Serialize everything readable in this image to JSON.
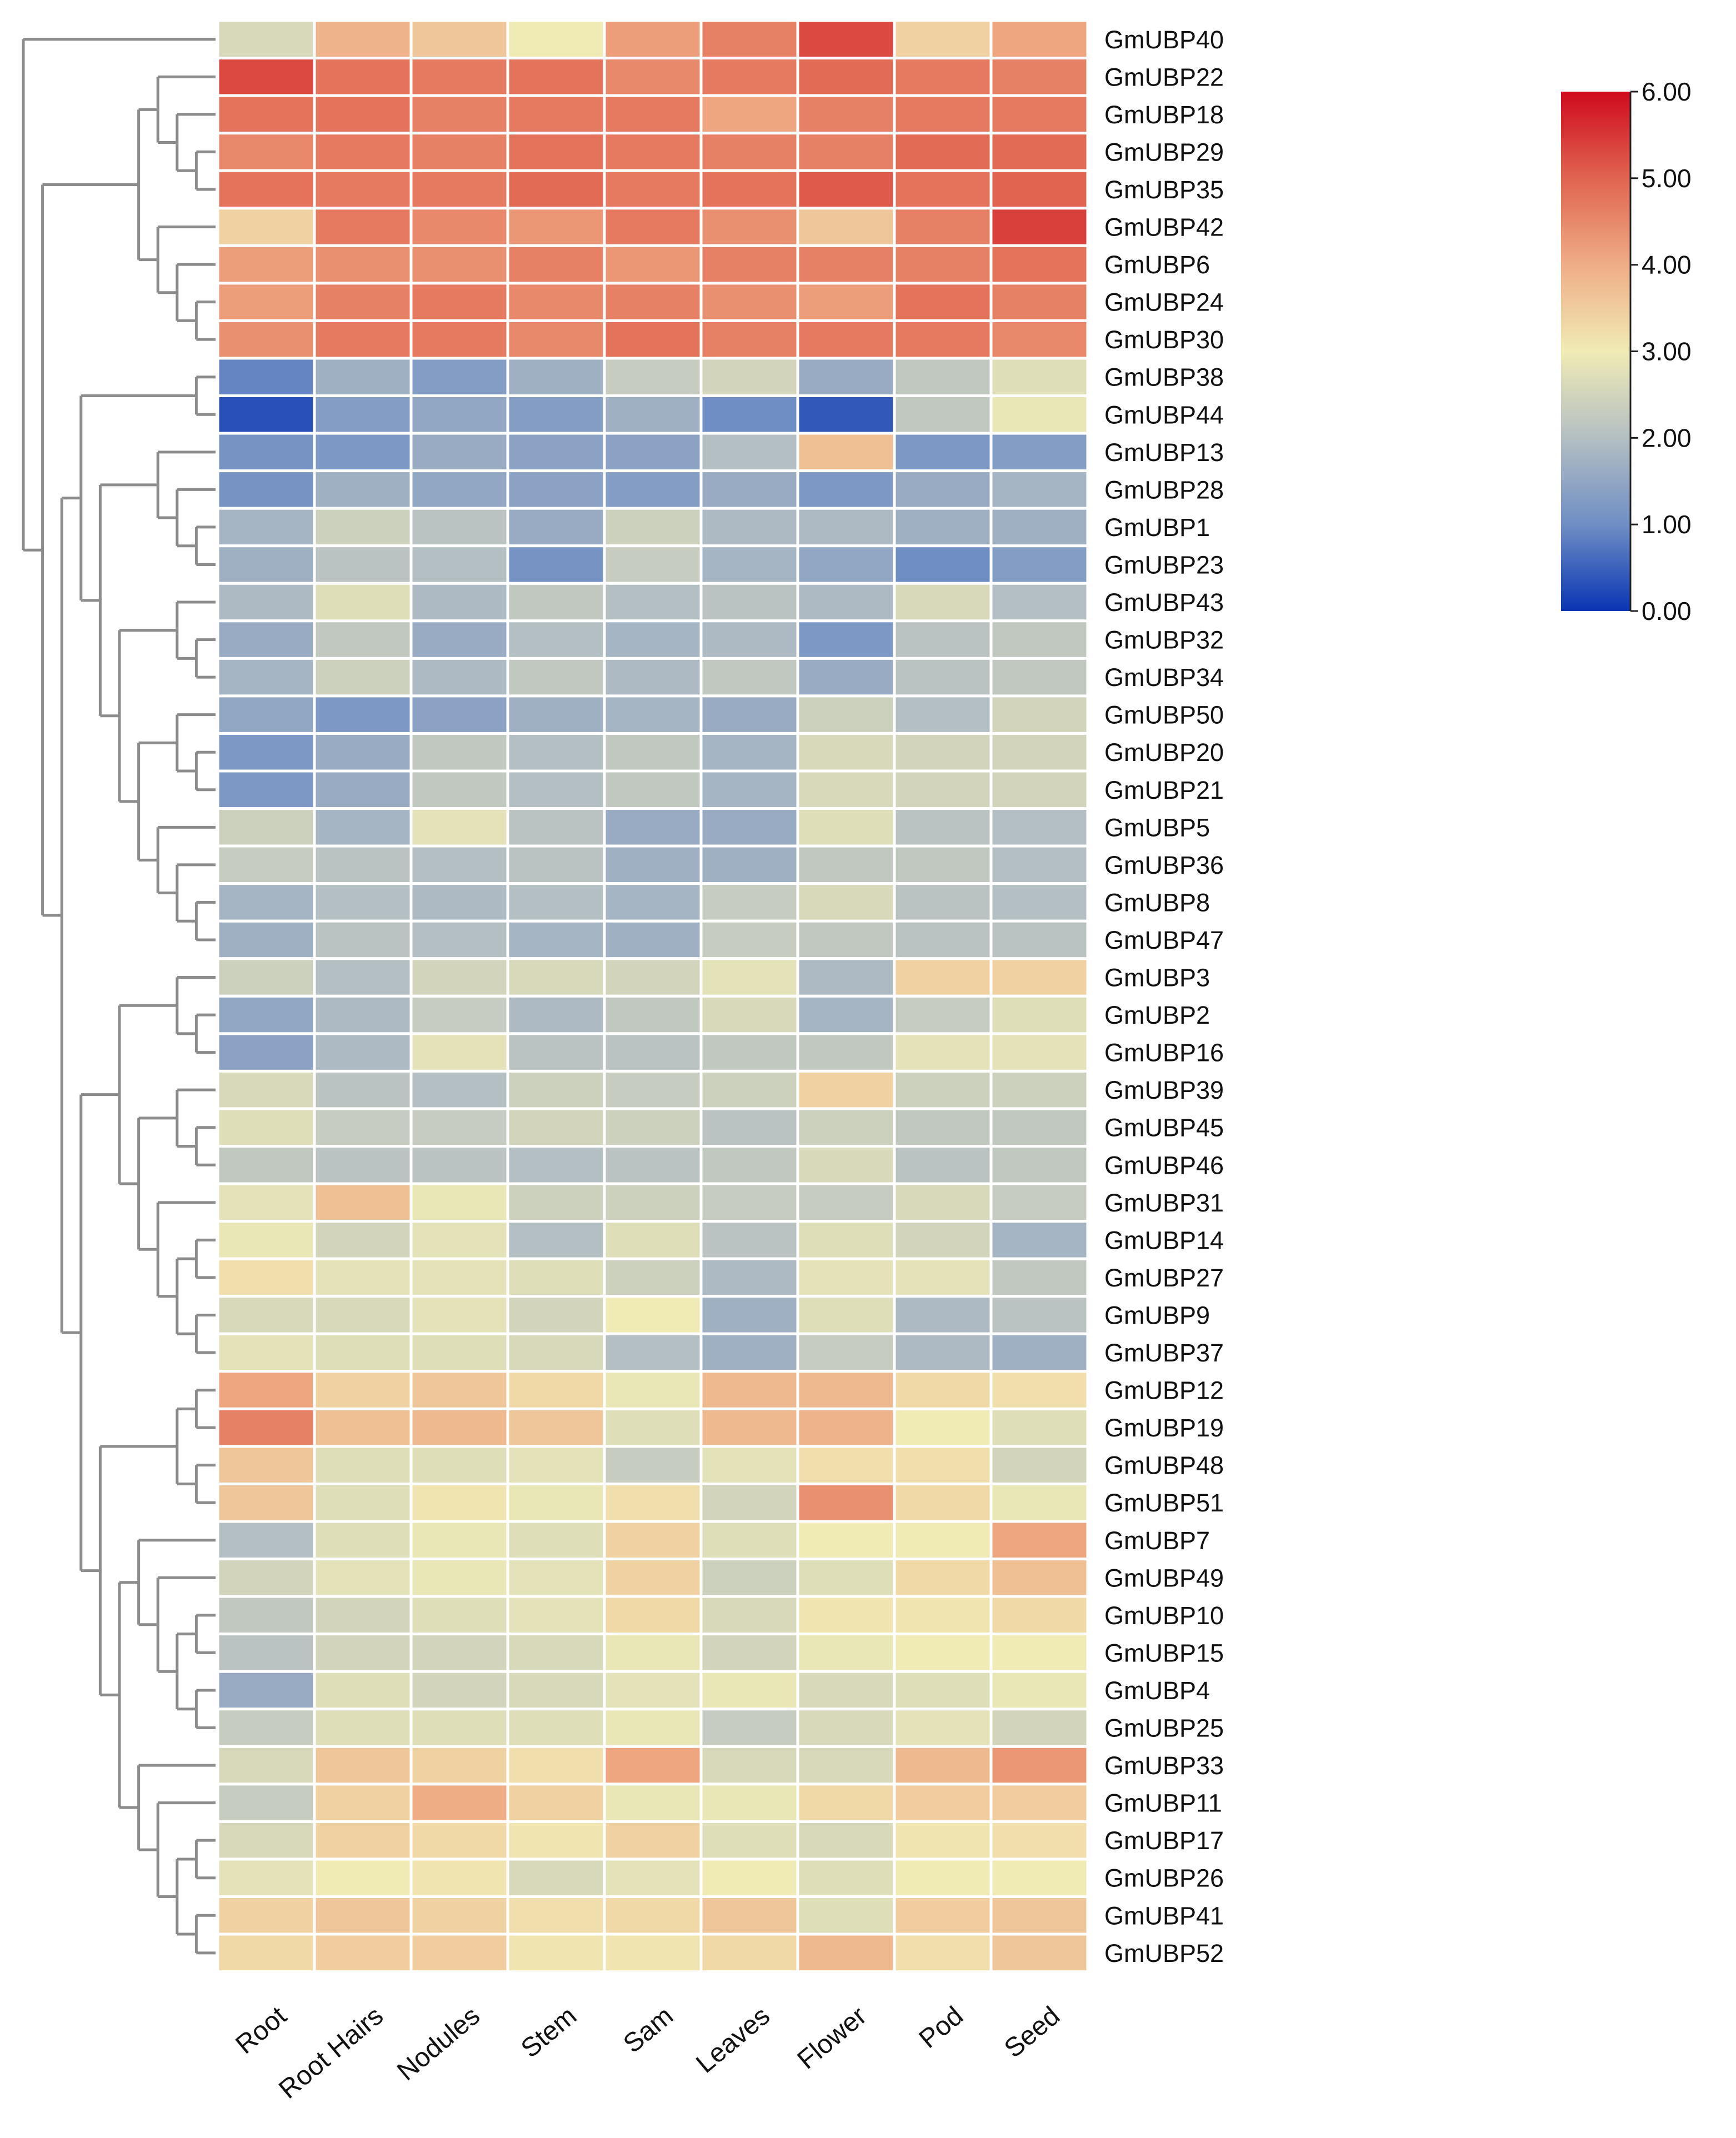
{
  "chart_data": {
    "type": "heatmap",
    "title": "",
    "columns": [
      "Root",
      "Root Hairs",
      "Nodules",
      "Stem",
      "Sam",
      "Leaves",
      "Flower",
      "Pod",
      "Seed"
    ],
    "rows": [
      "GmUBP40",
      "GmUBP22",
      "GmUBP18",
      "GmUBP29",
      "GmUBP35",
      "GmUBP42",
      "GmUBP6",
      "GmUBP24",
      "GmUBP30",
      "GmUBP38",
      "GmUBP44",
      "GmUBP13",
      "GmUBP28",
      "GmUBP1",
      "GmUBP23",
      "GmUBP43",
      "GmUBP32",
      "GmUBP34",
      "GmUBP50",
      "GmUBP20",
      "GmUBP21",
      "GmUBP5",
      "GmUBP36",
      "GmUBP8",
      "GmUBP47",
      "GmUBP3",
      "GmUBP2",
      "GmUBP16",
      "GmUBP39",
      "GmUBP45",
      "GmUBP46",
      "GmUBP31",
      "GmUBP14",
      "GmUBP27",
      "GmUBP9",
      "GmUBP37",
      "GmUBP12",
      "GmUBP19",
      "GmUBP48",
      "GmUBP51",
      "GmUBP7",
      "GmUBP49",
      "GmUBP10",
      "GmUBP15",
      "GmUBP4",
      "GmUBP25",
      "GmUBP33",
      "GmUBP11",
      "GmUBP17",
      "GmUBP26",
      "GmUBP41",
      "GmUBP52"
    ],
    "values": [
      [
        2.6,
        3.9,
        3.6,
        3.0,
        4.2,
        4.6,
        5.3,
        3.4,
        4.1
      ],
      [
        5.3,
        4.8,
        4.7,
        4.8,
        4.5,
        4.7,
        4.9,
        4.7,
        4.6
      ],
      [
        4.8,
        4.8,
        4.6,
        4.7,
        4.7,
        4.1,
        4.6,
        4.7,
        4.7
      ],
      [
        4.5,
        4.7,
        4.6,
        4.8,
        4.7,
        4.6,
        4.6,
        4.9,
        4.9
      ],
      [
        4.8,
        4.7,
        4.7,
        4.9,
        4.7,
        4.8,
        5.1,
        4.8,
        5.0
      ],
      [
        3.4,
        4.7,
        4.5,
        4.3,
        4.7,
        4.4,
        3.6,
        4.6,
        5.4
      ],
      [
        4.2,
        4.4,
        4.4,
        4.6,
        4.3,
        4.6,
        4.6,
        4.6,
        4.8
      ],
      [
        4.2,
        4.6,
        4.7,
        4.5,
        4.6,
        4.4,
        4.2,
        4.8,
        4.6
      ],
      [
        4.4,
        4.7,
        4.7,
        4.5,
        4.8,
        4.6,
        4.7,
        4.7,
        4.5
      ],
      [
        0.9,
        1.7,
        1.3,
        1.7,
        2.3,
        2.5,
        1.6,
        2.2,
        2.7
      ],
      [
        0.3,
        1.3,
        1.5,
        1.3,
        1.7,
        1.0,
        0.4,
        2.2,
        2.9
      ],
      [
        1.1,
        1.2,
        1.6,
        1.4,
        1.4,
        2.0,
        3.7,
        1.2,
        1.3
      ],
      [
        1.1,
        1.7,
        1.5,
        1.4,
        1.3,
        1.6,
        1.2,
        1.6,
        1.8
      ],
      [
        1.8,
        2.4,
        2.1,
        1.6,
        2.4,
        1.9,
        1.9,
        1.7,
        1.7
      ],
      [
        1.7,
        2.1,
        2.0,
        1.1,
        2.3,
        1.8,
        1.5,
        1.0,
        1.3
      ],
      [
        1.9,
        2.7,
        1.9,
        2.2,
        2.0,
        2.1,
        1.9,
        2.6,
        2.0
      ],
      [
        1.6,
        2.2,
        1.6,
        2.0,
        1.8,
        1.9,
        1.2,
        2.1,
        2.2
      ],
      [
        1.8,
        2.4,
        1.9,
        2.2,
        1.9,
        2.2,
        1.6,
        2.1,
        2.2
      ],
      [
        1.5,
        1.2,
        1.4,
        1.7,
        1.8,
        1.6,
        2.4,
        2.0,
        2.5
      ],
      [
        1.2,
        1.6,
        2.2,
        2.0,
        2.2,
        1.8,
        2.6,
        2.5,
        2.5
      ],
      [
        1.2,
        1.6,
        2.2,
        2.0,
        2.2,
        1.8,
        2.6,
        2.5,
        2.5
      ],
      [
        2.4,
        1.8,
        2.8,
        2.1,
        1.6,
        1.6,
        2.7,
        2.1,
        2.0
      ],
      [
        2.3,
        2.1,
        2.0,
        2.1,
        1.7,
        1.7,
        2.2,
        2.2,
        2.0
      ],
      [
        1.8,
        2.0,
        1.9,
        2.0,
        1.8,
        2.3,
        2.6,
        2.1,
        2.0
      ],
      [
        1.7,
        2.1,
        2.0,
        1.8,
        1.7,
        2.3,
        2.2,
        2.1,
        2.1
      ],
      [
        2.4,
        2.0,
        2.5,
        2.6,
        2.5,
        2.8,
        1.9,
        3.4,
        3.4
      ],
      [
        1.5,
        1.9,
        2.3,
        1.9,
        2.2,
        2.6,
        1.8,
        2.3,
        2.7
      ],
      [
        1.4,
        1.9,
        2.8,
        2.1,
        2.1,
        2.2,
        2.2,
        2.8,
        2.8
      ],
      [
        2.6,
        2.1,
        2.0,
        2.4,
        2.3,
        2.4,
        3.4,
        2.4,
        2.4
      ],
      [
        2.7,
        2.3,
        2.3,
        2.5,
        2.4,
        2.1,
        2.4,
        2.2,
        2.2
      ],
      [
        2.2,
        2.1,
        2.1,
        2.0,
        2.1,
        2.2,
        2.6,
        2.1,
        2.2
      ],
      [
        2.8,
        3.7,
        2.9,
        2.4,
        2.4,
        2.3,
        2.3,
        2.6,
        2.3
      ],
      [
        2.9,
        2.5,
        2.8,
        2.0,
        2.7,
        2.1,
        2.7,
        2.5,
        1.8
      ],
      [
        3.2,
        2.8,
        2.8,
        2.7,
        2.4,
        1.9,
        2.8,
        2.8,
        2.2
      ],
      [
        2.6,
        2.6,
        2.8,
        2.5,
        3.0,
        1.7,
        2.7,
        1.9,
        2.1
      ],
      [
        2.8,
        2.7,
        2.7,
        2.6,
        2.0,
        1.7,
        2.3,
        1.9,
        1.7
      ],
      [
        4.1,
        3.4,
        3.6,
        3.3,
        2.9,
        3.8,
        3.8,
        3.3,
        3.2
      ],
      [
        4.6,
        3.7,
        3.8,
        3.6,
        2.7,
        3.8,
        3.9,
        3.0,
        2.7
      ],
      [
        3.6,
        2.7,
        2.7,
        2.8,
        2.3,
        2.8,
        3.2,
        3.2,
        2.5
      ],
      [
        3.6,
        2.7,
        3.1,
        2.9,
        3.2,
        2.5,
        4.4,
        3.3,
        2.9
      ],
      [
        2.0,
        2.7,
        2.9,
        2.7,
        3.4,
        2.7,
        3.0,
        3.0,
        4.1
      ],
      [
        2.5,
        2.8,
        2.9,
        2.8,
        3.4,
        2.4,
        2.7,
        3.3,
        3.7
      ],
      [
        2.2,
        2.5,
        2.7,
        2.8,
        3.3,
        2.6,
        3.1,
        3.1,
        3.3
      ],
      [
        2.1,
        2.5,
        2.5,
        2.6,
        2.9,
        2.5,
        2.9,
        3.0,
        3.0
      ],
      [
        1.6,
        2.7,
        2.5,
        2.6,
        2.8,
        2.9,
        2.6,
        2.7,
        2.9
      ],
      [
        2.3,
        2.7,
        2.7,
        2.7,
        2.9,
        2.3,
        2.6,
        2.8,
        2.5
      ],
      [
        2.6,
        3.6,
        3.4,
        3.2,
        4.1,
        2.6,
        2.6,
        3.8,
        4.3
      ],
      [
        2.3,
        3.4,
        4.0,
        3.4,
        2.9,
        2.9,
        3.3,
        3.5,
        3.5
      ],
      [
        2.6,
        3.4,
        3.3,
        3.1,
        3.4,
        2.7,
        2.6,
        3.1,
        3.2
      ],
      [
        2.8,
        3.0,
        3.1,
        2.6,
        2.8,
        3.0,
        2.7,
        3.0,
        3.0
      ],
      [
        3.4,
        3.6,
        3.4,
        3.2,
        3.3,
        3.6,
        2.7,
        3.5,
        3.6
      ],
      [
        3.3,
        3.5,
        3.5,
        3.1,
        3.1,
        3.3,
        3.8,
        3.2,
        3.6
      ]
    ],
    "colorbar": {
      "min": 0,
      "max": 6,
      "ticks": [
        "0.00",
        "1.00",
        "2.00",
        "3.00",
        "4.00",
        "5.00",
        "6.00"
      ],
      "colors": [
        "#0935b3",
        "#6f8ec4",
        "#b4bfc3",
        "#f0ebb5",
        "#efad86",
        "#e06450",
        "#cf0a1e"
      ]
    },
    "row_dendrogram": "hierarchical clustering tree on left side",
    "legend_position": "top-right"
  }
}
